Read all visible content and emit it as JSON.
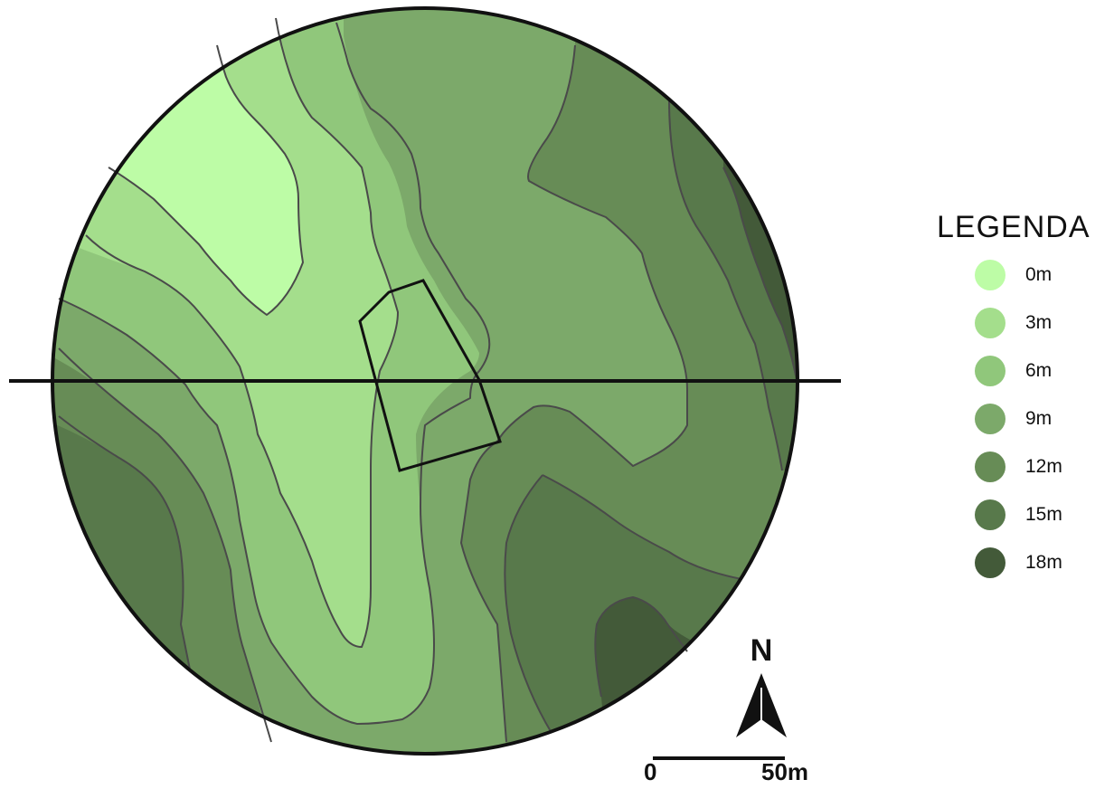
{
  "legend": {
    "title": "LEGENDA",
    "items": [
      {
        "label": "0m",
        "color": "#bdfca6"
      },
      {
        "label": "3m",
        "color": "#a4de8c"
      },
      {
        "label": "6m",
        "color": "#90c77b"
      },
      {
        "label": "9m",
        "color": "#7ca96a"
      },
      {
        "label": "12m",
        "color": "#678c56"
      },
      {
        "label": "15m",
        "color": "#58794b"
      },
      {
        "label": "18m",
        "color": "#435a39"
      }
    ]
  },
  "north_arrow": {
    "letter": "N"
  },
  "scale_bar": {
    "start_label": "0",
    "end_label": "50m"
  },
  "icons": {
    "north_arrow": "north-arrow-icon"
  }
}
